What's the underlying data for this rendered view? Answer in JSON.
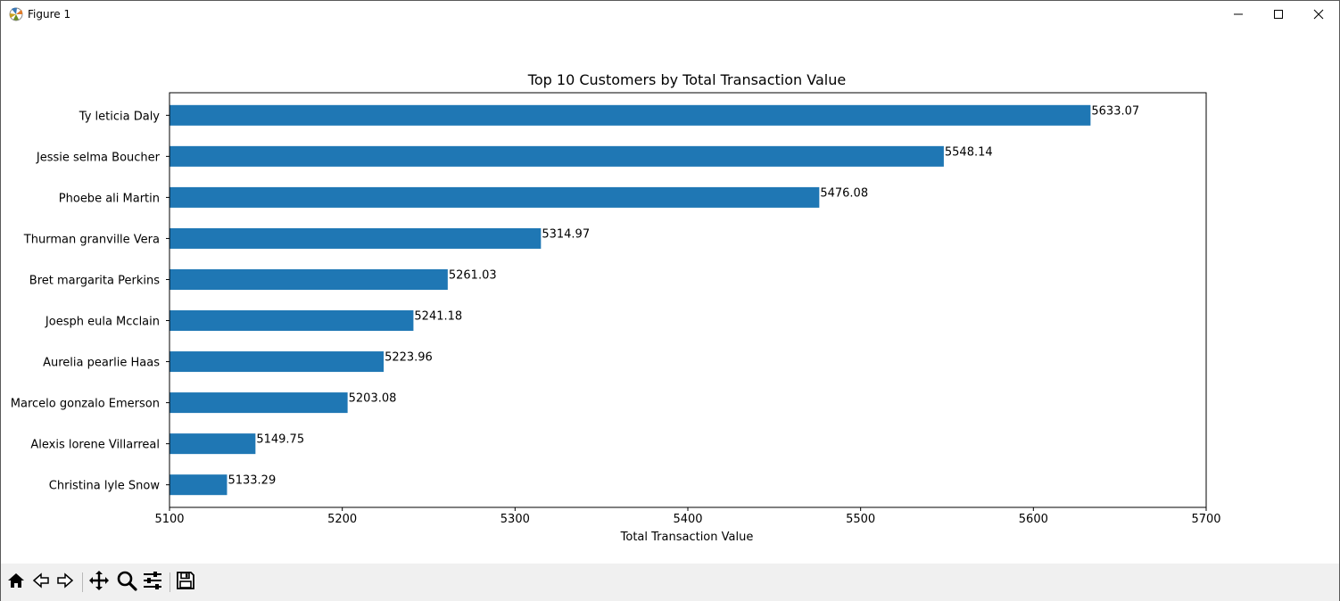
{
  "window": {
    "title": "Figure 1",
    "icons": [
      "matplotlib-logo-icon",
      "minimize-icon",
      "maximize-icon",
      "close-icon"
    ]
  },
  "toolbar": {
    "items": [
      "home-icon",
      "back-arrow-icon",
      "forward-arrow-icon",
      "pan-icon",
      "zoom-icon",
      "configure-subplots-icon",
      "save-icon"
    ]
  },
  "colors": {
    "bar": "#1f77b4"
  },
  "chart_data": {
    "type": "bar",
    "orientation": "horizontal",
    "title": "Top 10 Customers by Total Transaction Value",
    "xlabel": "Total Transaction Value",
    "ylabel": "",
    "xlim": [
      5100,
      5700
    ],
    "xticks": [
      5100,
      5200,
      5300,
      5400,
      5500,
      5600,
      5700
    ],
    "grid": false,
    "categories": [
      "Ty leticia Daly",
      "Jessie selma Boucher",
      "Phoebe ali Martin",
      "Thurman granville Vera",
      "Bret margarita Perkins",
      "Joesph eula Mcclain",
      "Aurelia pearlie Haas",
      "Marcelo gonzalo Emerson",
      "Alexis lorene Villarreal",
      "Christina lyle Snow"
    ],
    "values": [
      5633.07,
      5548.14,
      5476.08,
      5314.97,
      5261.03,
      5241.18,
      5223.96,
      5203.08,
      5149.75,
      5133.29
    ],
    "value_labels": [
      "5633.07",
      "5548.14",
      "5476.08",
      "5314.97",
      "5261.03",
      "5241.18",
      "5223.96",
      "5203.08",
      "5149.75",
      "5133.29"
    ]
  }
}
